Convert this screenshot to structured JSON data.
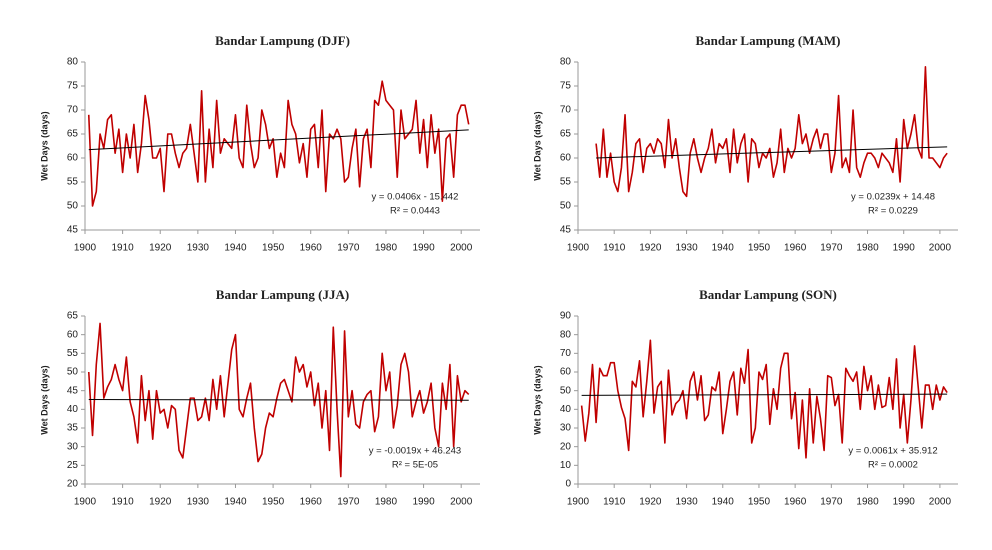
{
  "chart_data": [
    {
      "type": "line",
      "title": "Bandar Lampung (DJF)",
      "y_label": "Wet Days (days)",
      "annotations": [
        "y = 0.0406x - 15.442",
        "R² = 0.0443"
      ],
      "xlim": [
        1900,
        2005
      ],
      "xticks": [
        1900,
        1910,
        1920,
        1930,
        1940,
        1950,
        1960,
        1970,
        1980,
        1990,
        2000
      ],
      "ylim": [
        45,
        80
      ],
      "yticks": [
        45,
        50,
        55,
        60,
        65,
        70,
        75,
        80
      ],
      "x": [
        1901,
        1902,
        1903,
        1904,
        1905,
        1906,
        1907,
        1908,
        1909,
        1910,
        1911,
        1912,
        1913,
        1914,
        1915,
        1916,
        1917,
        1918,
        1919,
        1920,
        1921,
        1922,
        1923,
        1924,
        1925,
        1926,
        1927,
        1928,
        1929,
        1930,
        1931,
        1932,
        1933,
        1934,
        1935,
        1936,
        1937,
        1938,
        1939,
        1940,
        1941,
        1942,
        1943,
        1944,
        1945,
        1946,
        1947,
        1948,
        1949,
        1950,
        1951,
        1952,
        1953,
        1954,
        1955,
        1956,
        1957,
        1958,
        1959,
        1960,
        1961,
        1962,
        1963,
        1964,
        1965,
        1966,
        1967,
        1968,
        1969,
        1970,
        1971,
        1972,
        1973,
        1974,
        1975,
        1976,
        1977,
        1978,
        1979,
        1980,
        1981,
        1982,
        1983,
        1984,
        1985,
        1986,
        1987,
        1988,
        1989,
        1990,
        1991,
        1992,
        1993,
        1994,
        1995,
        1996,
        1997,
        1998,
        1999,
        2000,
        2001,
        2002
      ],
      "series": [
        {
          "color": "#c00000",
          "values": [
            69,
            50,
            53,
            65,
            62,
            68,
            69,
            61,
            66,
            57,
            65,
            60,
            67,
            57,
            63,
            73,
            68,
            60,
            60,
            62,
            53,
            65,
            65,
            61,
            58,
            61,
            62,
            67,
            61,
            55,
            74,
            55,
            66,
            58,
            72,
            61,
            64,
            63,
            62,
            69,
            60,
            58,
            71,
            63,
            58,
            60,
            70,
            67,
            62,
            64,
            56,
            61,
            58,
            72,
            67,
            65,
            59,
            63,
            56,
            66,
            67,
            58,
            70,
            53,
            65,
            64,
            66,
            64,
            55,
            56,
            62,
            66,
            54,
            64,
            66,
            58,
            72,
            71,
            76,
            72,
            71,
            70,
            56,
            70,
            64,
            65,
            66,
            72,
            61,
            68,
            58,
            69,
            61,
            66,
            51,
            64,
            65,
            56,
            69,
            71,
            71,
            67
          ]
        }
      ],
      "trendline": {
        "color": "#000000",
        "x": [
          1901,
          2002
        ],
        "values": [
          61.75,
          65.85
        ]
      }
    },
    {
      "type": "line",
      "title": "Bandar Lampung (MAM)",
      "y_label": "Wet Days (days)",
      "annotations": [
        "y = 0.0239x + 14.48",
        "R² = 0.0229"
      ],
      "xlim": [
        1900,
        2005
      ],
      "xticks": [
        1900,
        1910,
        1920,
        1930,
        1940,
        1950,
        1960,
        1970,
        1980,
        1990,
        2000
      ],
      "ylim": [
        45,
        80
      ],
      "yticks": [
        45,
        50,
        55,
        60,
        65,
        70,
        75,
        80
      ],
      "x": [
        1901,
        1902,
        1903,
        1904,
        1905,
        1906,
        1907,
        1908,
        1909,
        1910,
        1911,
        1912,
        1913,
        1914,
        1915,
        1916,
        1917,
        1918,
        1919,
        1920,
        1921,
        1922,
        1923,
        1924,
        1925,
        1926,
        1927,
        1928,
        1929,
        1930,
        1931,
        1932,
        1933,
        1934,
        1935,
        1936,
        1937,
        1938,
        1939,
        1940,
        1941,
        1942,
        1943,
        1944,
        1945,
        1946,
        1947,
        1948,
        1949,
        1950,
        1951,
        1952,
        1953,
        1954,
        1955,
        1956,
        1957,
        1958,
        1959,
        1960,
        1961,
        1962,
        1963,
        1964,
        1965,
        1966,
        1967,
        1968,
        1969,
        1970,
        1971,
        1972,
        1973,
        1974,
        1975,
        1976,
        1977,
        1978,
        1979,
        1980,
        1981,
        1982,
        1983,
        1984,
        1985,
        1986,
        1987,
        1988,
        1989,
        1990,
        1991,
        1992,
        1993,
        1994,
        1995,
        1996,
        1997,
        1998,
        1999,
        2000,
        2001,
        2002
      ],
      "series": [
        {
          "color": "#c00000",
          "values": [
            null,
            null,
            null,
            null,
            63,
            56,
            66,
            56,
            61,
            55,
            53,
            58,
            69,
            53,
            57,
            63,
            64,
            57,
            62,
            63,
            61,
            64,
            63,
            58,
            68,
            60,
            64,
            58,
            53,
            52,
            61,
            64,
            60,
            57,
            60,
            62,
            66,
            59,
            63,
            62,
            64,
            57,
            66,
            59,
            63,
            65,
            55,
            64,
            63,
            58,
            61,
            60,
            62,
            56,
            59,
            66,
            57,
            62,
            60,
            62,
            69,
            63,
            65,
            61,
            64,
            66,
            62,
            65,
            65,
            57,
            61,
            73,
            58,
            60,
            57,
            70,
            58,
            56,
            59,
            61,
            61,
            60,
            58,
            61,
            60,
            59,
            57,
            64,
            55,
            68,
            62,
            65,
            69,
            62,
            60,
            79,
            60,
            60,
            59,
            58,
            60,
            61
          ]
        }
      ],
      "trendline": {
        "color": "#000000",
        "x": [
          1905,
          2002
        ],
        "values": [
          60.01,
          62.33
        ]
      }
    },
    {
      "type": "line",
      "title": "Bandar Lampung (JJA)",
      "y_label": "Wet Days (days)",
      "annotations": [
        "y = -0.0019x + 46.243",
        "R² = 5E-05"
      ],
      "xlim": [
        1900,
        2005
      ],
      "xticks": [
        1900,
        1910,
        1920,
        1930,
        1940,
        1950,
        1960,
        1970,
        1980,
        1990,
        2000
      ],
      "ylim": [
        20,
        65
      ],
      "yticks": [
        20,
        25,
        30,
        35,
        40,
        45,
        50,
        55,
        60,
        65
      ],
      "x": [
        1901,
        1902,
        1903,
        1904,
        1905,
        1906,
        1907,
        1908,
        1909,
        1910,
        1911,
        1912,
        1913,
        1914,
        1915,
        1916,
        1917,
        1918,
        1919,
        1920,
        1921,
        1922,
        1923,
        1924,
        1925,
        1926,
        1927,
        1928,
        1929,
        1930,
        1931,
        1932,
        1933,
        1934,
        1935,
        1936,
        1937,
        1938,
        1939,
        1940,
        1941,
        1942,
        1943,
        1944,
        1945,
        1946,
        1947,
        1948,
        1949,
        1950,
        1951,
        1952,
        1953,
        1954,
        1955,
        1956,
        1957,
        1958,
        1959,
        1960,
        1961,
        1962,
        1963,
        1964,
        1965,
        1966,
        1967,
        1968,
        1969,
        1970,
        1971,
        1972,
        1973,
        1974,
        1975,
        1976,
        1977,
        1978,
        1979,
        1980,
        1981,
        1982,
        1983,
        1984,
        1985,
        1986,
        1987,
        1988,
        1989,
        1990,
        1991,
        1992,
        1993,
        1994,
        1995,
        1996,
        1997,
        1998,
        1999,
        2000,
        2001,
        2002
      ],
      "series": [
        {
          "color": "#c00000",
          "values": [
            50,
            33,
            52,
            63,
            43,
            46,
            48,
            52,
            48,
            45,
            54,
            42,
            38,
            31,
            49,
            37,
            45,
            32,
            45,
            39,
            40,
            35,
            41,
            40,
            29,
            27,
            35,
            43,
            43,
            37,
            38,
            43,
            37,
            48,
            40,
            49,
            38,
            47,
            56,
            60,
            40,
            38,
            43,
            47,
            35,
            26,
            28,
            35,
            39,
            38,
            43,
            47,
            48,
            45,
            42,
            54,
            50,
            52,
            46,
            50,
            41,
            47,
            35,
            45,
            29,
            62,
            40,
            22,
            61,
            38,
            45,
            36,
            35,
            42,
            44,
            45,
            34,
            38,
            55,
            45,
            50,
            35,
            41,
            52,
            55,
            50,
            38,
            42,
            45,
            39,
            42,
            47,
            35,
            30,
            47,
            40,
            52,
            30,
            49,
            42,
            45,
            44
          ]
        }
      ],
      "trendline": {
        "color": "#000000",
        "x": [
          1901,
          2002
        ],
        "values": [
          42.63,
          42.44
        ]
      }
    },
    {
      "type": "line",
      "title": "Bandar Lampung (SON)",
      "y_label": "Wet Days (days)",
      "annotations": [
        "y = 0.0061x + 35.912",
        "R² = 0.0002"
      ],
      "xlim": [
        1900,
        2005
      ],
      "xticks": [
        1900,
        1910,
        1920,
        1930,
        1940,
        1950,
        1960,
        1970,
        1980,
        1990,
        2000
      ],
      "ylim": [
        0,
        90
      ],
      "yticks": [
        0,
        10,
        20,
        30,
        40,
        50,
        60,
        70,
        80,
        90
      ],
      "x": [
        1901,
        1902,
        1903,
        1904,
        1905,
        1906,
        1907,
        1908,
        1909,
        1910,
        1911,
        1912,
        1913,
        1914,
        1915,
        1916,
        1917,
        1918,
        1919,
        1920,
        1921,
        1922,
        1923,
        1924,
        1925,
        1926,
        1927,
        1928,
        1929,
        1930,
        1931,
        1932,
        1933,
        1934,
        1935,
        1936,
        1937,
        1938,
        1939,
        1940,
        1941,
        1942,
        1943,
        1944,
        1945,
        1946,
        1947,
        1948,
        1949,
        1950,
        1951,
        1952,
        1953,
        1954,
        1955,
        1956,
        1957,
        1958,
        1959,
        1960,
        1961,
        1962,
        1963,
        1964,
        1965,
        1966,
        1967,
        1968,
        1969,
        1970,
        1971,
        1972,
        1973,
        1974,
        1975,
        1976,
        1977,
        1978,
        1979,
        1980,
        1981,
        1982,
        1983,
        1984,
        1985,
        1986,
        1987,
        1988,
        1989,
        1990,
        1991,
        1992,
        1993,
        1994,
        1995,
        1996,
        1997,
        1998,
        1999,
        2000,
        2001,
        2002
      ],
      "series": [
        {
          "color": "#c00000",
          "values": [
            42,
            23,
            38,
            64,
            33,
            62,
            58,
            58,
            65,
            65,
            50,
            41,
            35,
            18,
            55,
            52,
            66,
            36,
            55,
            77,
            38,
            52,
            55,
            22,
            61,
            37,
            43,
            45,
            50,
            35,
            55,
            60,
            45,
            58,
            34,
            37,
            52,
            50,
            60,
            27,
            40,
            55,
            60,
            37,
            62,
            54,
            72,
            22,
            30,
            60,
            56,
            64,
            32,
            51,
            40,
            62,
            70,
            70,
            35,
            49,
            19,
            45,
            14,
            51,
            22,
            47,
            35,
            18,
            58,
            57,
            42,
            48,
            22,
            62,
            58,
            55,
            60,
            40,
            63,
            50,
            58,
            40,
            53,
            41,
            42,
            57,
            40,
            67,
            30,
            48,
            22,
            45,
            74,
            52,
            30,
            53,
            53,
            40,
            53,
            45,
            52,
            49
          ]
        }
      ],
      "trendline": {
        "color": "#000000",
        "x": [
          1901,
          2002
        ],
        "values": [
          47.51,
          48.12
        ]
      }
    }
  ]
}
